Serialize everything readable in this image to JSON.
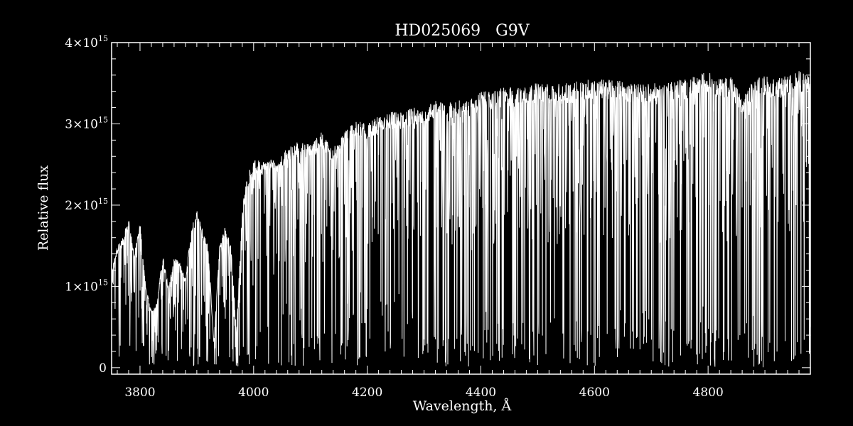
{
  "chart_data": {
    "type": "line",
    "title": "HD025069   G9V",
    "xlabel": "Wavelength, Å",
    "ylabel": "Relative flux",
    "xlim": [
      3750,
      4980
    ],
    "ylim": [
      -0.08,
      4.0
    ],
    "y_multiplier": "×10",
    "y_exponent": "15",
    "x_ticks": [
      3800,
      4000,
      4200,
      4400,
      4600,
      4800
    ],
    "x_tick_labels": [
      "3800",
      "4000",
      "4200",
      "4400",
      "4600",
      "4800"
    ],
    "y_ticks": [
      0,
      1,
      2,
      3,
      4
    ],
    "y_tick_labels": [
      "0",
      "1",
      "2",
      "3",
      "4"
    ],
    "grid": false,
    "colors": {
      "background": "#000000",
      "foreground": "#ffffff"
    },
    "series": [
      {
        "x": [
          3750,
          3760,
          3770,
          3780,
          3790,
          3800,
          3810,
          3820,
          3830,
          3840,
          3850,
          3860,
          3870,
          3880,
          3890,
          3900,
          3910,
          3920,
          3930,
          3940,
          3950,
          3960,
          3970,
          3980,
          3990,
          4000,
          4020,
          4040,
          4060,
          4080,
          4100,
          4120,
          4140,
          4160,
          4180,
          4200,
          4220,
          4240,
          4260,
          4280,
          4300,
          4320,
          4340,
          4360,
          4380,
          4400,
          4420,
          4440,
          4460,
          4480,
          4500,
          4520,
          4540,
          4560,
          4580,
          4600,
          4620,
          4640,
          4660,
          4680,
          4700,
          4720,
          4740,
          4760,
          4780,
          4800,
          4820,
          4840,
          4860,
          4880,
          4900,
          4920,
          4940,
          4960,
          4980
        ],
        "y": [
          1.2,
          1.5,
          1.6,
          1.85,
          1.4,
          1.8,
          1.0,
          0.7,
          0.8,
          1.4,
          1.0,
          1.35,
          1.3,
          1.1,
          1.7,
          1.95,
          1.7,
          1.5,
          0.3,
          1.5,
          1.75,
          1.5,
          0.45,
          2.0,
          2.4,
          2.55,
          2.55,
          2.6,
          2.7,
          2.8,
          2.75,
          2.9,
          2.7,
          2.9,
          3.05,
          3.0,
          3.1,
          3.15,
          3.15,
          3.2,
          3.2,
          3.3,
          3.25,
          3.3,
          3.3,
          3.4,
          3.4,
          3.45,
          3.45,
          3.5,
          3.5,
          3.5,
          3.5,
          3.5,
          3.55,
          3.55,
          3.55,
          3.55,
          3.5,
          3.5,
          3.5,
          3.5,
          3.55,
          3.55,
          3.6,
          3.65,
          3.55,
          3.6,
          3.3,
          3.55,
          3.6,
          3.55,
          3.6,
          3.65,
          3.6
        ]
      }
    ]
  }
}
